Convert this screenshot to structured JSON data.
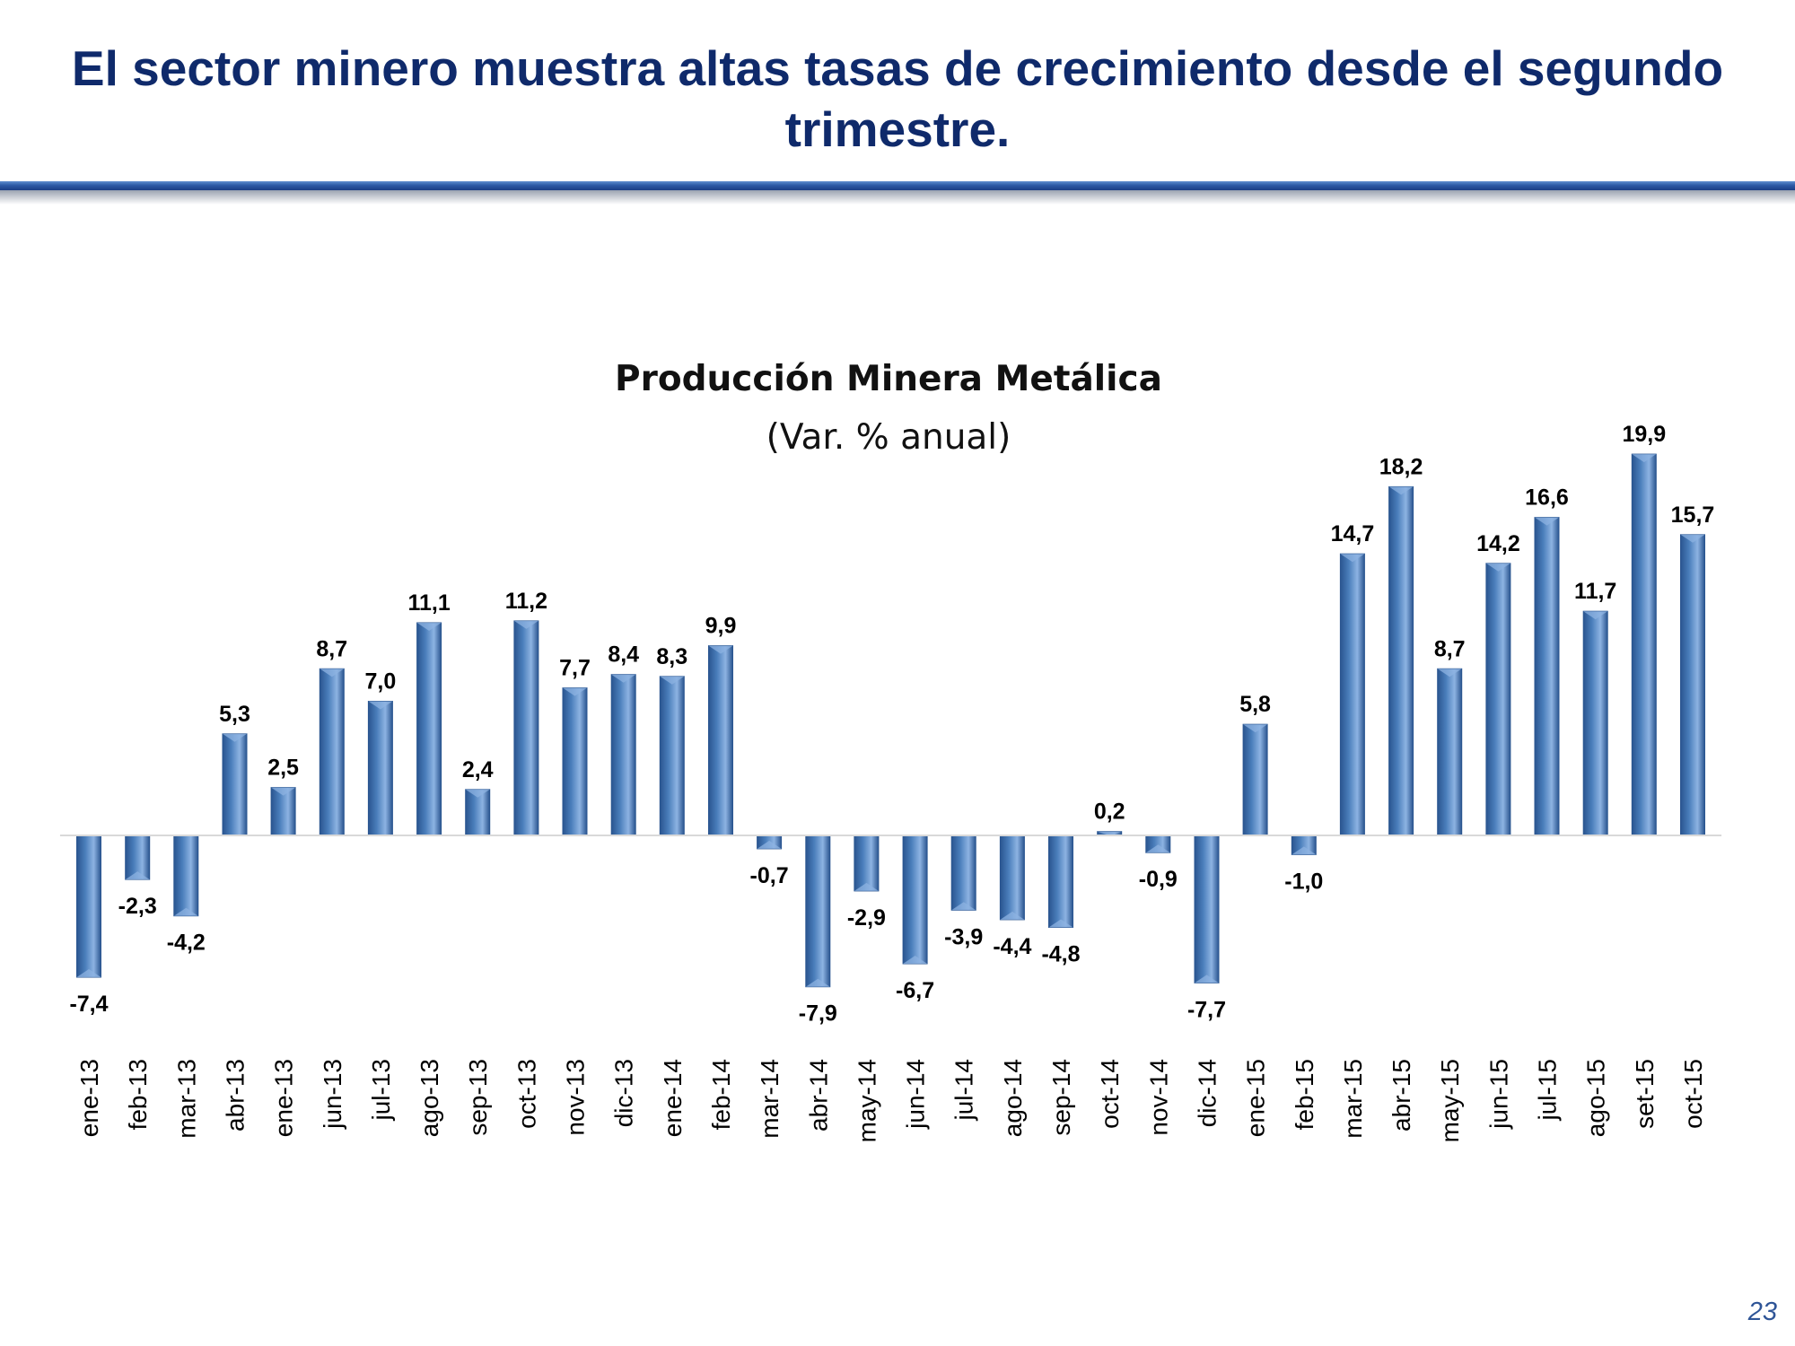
{
  "slide": {
    "title": "El sector minero muestra altas tasas de crecimiento desde el segundo trimestre.",
    "page_number": "23"
  },
  "colors": {
    "title": "#0f2a6b",
    "bar": "#4a7ebb",
    "bar_light": "#8db3e2",
    "bar_dark": "#2a5590",
    "page_number": "#2f5597"
  },
  "chart_data": {
    "type": "bar",
    "title": "Producción Minera Metálica",
    "subtitle": "(Var. % anual)",
    "categories": [
      "ene-13",
      "feb-13",
      "mar-13",
      "abr-13",
      "ene-13",
      "jun-13",
      "jul-13",
      "ago-13",
      "sep-13",
      "oct-13",
      "nov-13",
      "dic-13",
      "ene-14",
      "feb-14",
      "mar-14",
      "abr-14",
      "may-14",
      "jun-14",
      "jul-14",
      "ago-14",
      "sep-14",
      "oct-14",
      "nov-14",
      "dic-14",
      "ene-15",
      "feb-15",
      "mar-15",
      "abr-15",
      "may-15",
      "jun-15",
      "jul-15",
      "ago-15",
      "set-15",
      "oct-15"
    ],
    "values": [
      -7.4,
      -2.3,
      -4.2,
      5.3,
      2.5,
      8.7,
      7.0,
      11.1,
      2.4,
      11.2,
      7.7,
      8.4,
      8.3,
      9.9,
      -0.7,
      -7.9,
      -2.9,
      -6.7,
      -3.9,
      -4.4,
      -4.8,
      0.2,
      -0.9,
      -7.7,
      5.8,
      -1.0,
      14.7,
      18.2,
      8.7,
      14.2,
      16.6,
      11.7,
      19.9,
      15.7
    ],
    "labels": [
      "-7,4",
      "-2,3",
      "-4,2",
      "5,3",
      "2,5",
      "8,7",
      "7,0",
      "11,1",
      "2,4",
      "11,2",
      "7,7",
      "8,4",
      "8,3",
      "9,9",
      "-0,7",
      "-7,9",
      "-2,9",
      "-6,7",
      "-3,9",
      "-4,4",
      "-4,8",
      "0,2",
      "-0,9",
      "-7,7",
      "5,8",
      "-1,0",
      "14,7",
      "18,2",
      "8,7",
      "14,2",
      "16,6",
      "11,7",
      "19,9",
      "15,7"
    ],
    "xlabel": "",
    "ylabel": "",
    "ylim": [
      -8,
      20
    ],
    "grid": false,
    "legend": "none"
  }
}
